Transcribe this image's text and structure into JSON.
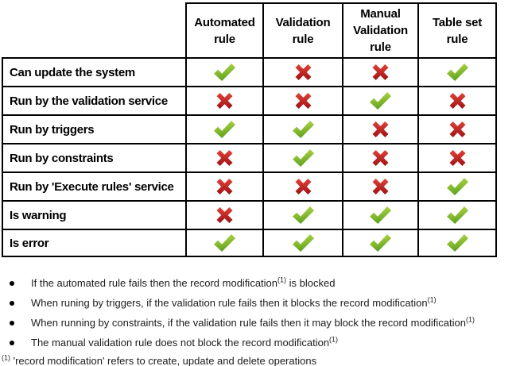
{
  "table": {
    "columns": [
      {
        "label": "Automated\nrule"
      },
      {
        "label": "Validation\nrule"
      },
      {
        "label": "Manual\nValidation\nrule"
      },
      {
        "label": "Table set\nrule"
      }
    ],
    "rows": [
      {
        "label": "Can update the system",
        "values": [
          "check",
          "cross",
          "cross",
          "check"
        ]
      },
      {
        "label": "Run by the validation service",
        "values": [
          "cross",
          "cross",
          "check",
          "cross"
        ]
      },
      {
        "label": "Run by triggers",
        "values": [
          "check",
          "check",
          "cross",
          "cross"
        ]
      },
      {
        "label": "Run by constraints",
        "values": [
          "cross",
          "check",
          "cross",
          "cross"
        ]
      },
      {
        "label": "Run by 'Execute rules' service",
        "values": [
          "cross",
          "cross",
          "cross",
          "check"
        ]
      },
      {
        "label": "Is warning",
        "values": [
          "cross",
          "check",
          "check",
          "check"
        ]
      },
      {
        "label": "Is error",
        "values": [
          "check",
          "check",
          "check",
          "check"
        ]
      }
    ],
    "icons": {
      "check": "✔",
      "cross": "✖"
    },
    "colors": {
      "check_light": "#bedc4e",
      "check_dark": "#5ea21d",
      "cross_light": "#e04338",
      "cross_dark": "#9e1115",
      "border": "#000000"
    }
  },
  "notes": {
    "bullets": [
      {
        "before": "If the automated rule fails then the record modification",
        "sup": "(1)",
        "after": " is blocked"
      },
      {
        "before": "When runing by triggers, if the validation rule fails then it blocks the record modification",
        "sup": "(1)",
        "after": ""
      },
      {
        "before": "When running by constraints, if the validation rule fails then it may block the record modification",
        "sup": "(1)",
        "after": ""
      },
      {
        "before": "The manual validation rule does not block the record modification",
        "sup": "(1)",
        "after": ""
      }
    ],
    "footnote": {
      "sup": "(1)",
      "text": " 'record modification' refers to create, update and delete operations"
    }
  }
}
